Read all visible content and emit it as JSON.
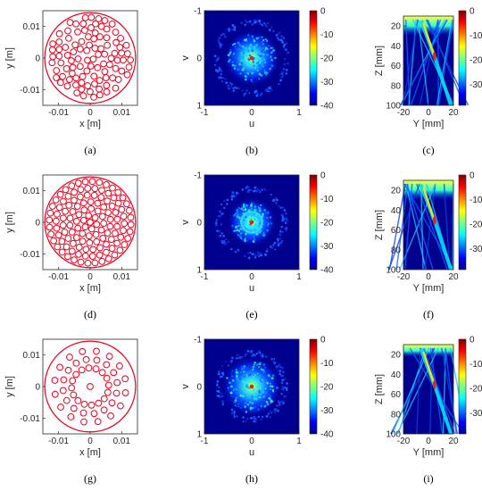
{
  "panels": [
    {
      "id": "a",
      "label": "(a)",
      "kind": "layout",
      "variant": "random",
      "xlabel": "x [m]",
      "ylabel": "y [m]",
      "xticks": [
        "-0.01",
        "0",
        "0.01"
      ],
      "yticks": [
        "0.01",
        "0",
        "-0.01"
      ]
    },
    {
      "id": "b",
      "label": "(b)",
      "kind": "beam",
      "variant": "random",
      "xlabel": "u",
      "ylabel": "v",
      "xticks": [
        "-1",
        "0",
        "1"
      ],
      "yticks": [
        "-1",
        "0",
        "1"
      ],
      "cbar_ticks": [
        "0",
        "-10",
        "-20",
        "-30",
        "-40"
      ]
    },
    {
      "id": "c",
      "label": "(c)",
      "kind": "field",
      "variant": "random",
      "xlabel": "Y [mm]",
      "ylabel": "Z [mm]",
      "xticks": [
        "-20",
        "0",
        "20"
      ],
      "yticks": [
        "20",
        "40",
        "60",
        "80",
        "100"
      ],
      "cbar_ticks": [
        "0",
        "-10",
        "-20",
        "-30"
      ]
    },
    {
      "id": "d",
      "label": "(d)",
      "kind": "layout",
      "variant": "packed",
      "xlabel": "x [m]",
      "ylabel": "y [m]",
      "xticks": [
        "-0.01",
        "0",
        "0.01"
      ],
      "yticks": [
        "0.01",
        "0",
        "-0.01"
      ]
    },
    {
      "id": "e",
      "label": "(e)",
      "kind": "beam",
      "variant": "packed",
      "xlabel": "u",
      "ylabel": "v",
      "xticks": [
        "-1",
        "0",
        "1"
      ],
      "yticks": [
        "-1",
        "0",
        "1"
      ],
      "cbar_ticks": [
        "0",
        "-10",
        "-20",
        "-30",
        "-40"
      ]
    },
    {
      "id": "f",
      "label": "(f)",
      "kind": "field",
      "variant": "packed",
      "xlabel": "Y [mm]",
      "ylabel": "Z [mm]",
      "xticks": [
        "-20",
        "0",
        "20"
      ],
      "yticks": [
        "20",
        "40",
        "60",
        "80",
        "100"
      ],
      "cbar_ticks": [
        "0",
        "-10",
        "-20",
        "-30"
      ]
    },
    {
      "id": "g",
      "label": "(g)",
      "kind": "layout",
      "variant": "spiral",
      "xlabel": "x [m]",
      "ylabel": "y [m]",
      "xticks": [
        "-0.01",
        "0",
        "0.01"
      ],
      "yticks": [
        "0.01",
        "0",
        "-0.01"
      ]
    },
    {
      "id": "h",
      "label": "(h)",
      "kind": "beam",
      "variant": "spiral",
      "xlabel": "u",
      "ylabel": "v",
      "xticks": [
        "-1",
        "0",
        "1"
      ],
      "yticks": [
        "-1",
        "0",
        "1"
      ],
      "cbar_ticks": [
        "0",
        "-10",
        "-20",
        "-30",
        "-40"
      ]
    },
    {
      "id": "i",
      "label": "(i)",
      "kind": "field",
      "variant": "spiral",
      "xlabel": "Y [mm]",
      "ylabel": "Z [mm]",
      "xticks": [
        "-20",
        "0",
        "20"
      ],
      "yticks": [
        "20",
        "40",
        "60",
        "80",
        "100"
      ],
      "cbar_ticks": [
        "0",
        "-10",
        "-20",
        "-30"
      ]
    }
  ],
  "colors": {
    "element": "#e8001c",
    "aperture": "#e8001c",
    "axis": "#262626",
    "colormap": "jet"
  }
}
